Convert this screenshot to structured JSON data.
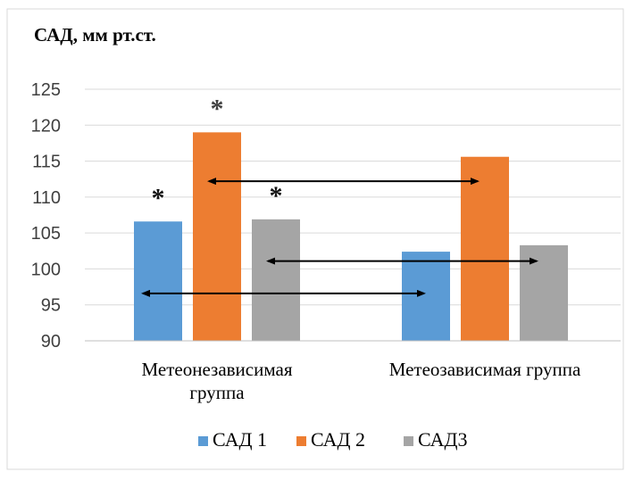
{
  "chart_data": {
    "type": "bar",
    "title": "САД, мм рт.ст.",
    "categories": [
      "Метеонезависимая группа",
      "Метеозависимая группа"
    ],
    "category_lines": [
      [
        "Метеонезависимая",
        "группа"
      ],
      [
        "Метеозависимая группа"
      ]
    ],
    "series": [
      {
        "name": "САД 1",
        "values": [
          106.6,
          102.4
        ],
        "color": "#5B9BD5"
      },
      {
        "name": "САД 2",
        "values": [
          119.0,
          115.6
        ],
        "color": "#ED7D31"
      },
      {
        "name": "САД3",
        "values": [
          106.9,
          103.3
        ],
        "color": "#A5A5A5"
      }
    ],
    "ylim": [
      90,
      125
    ],
    "yticks": [
      90,
      95,
      100,
      105,
      110,
      115,
      120,
      125
    ],
    "grid": true,
    "legend_position": "bottom",
    "annotations": {
      "significance_markers": [
        {
          "series": 0,
          "category": 0,
          "text": "*"
        },
        {
          "series": 1,
          "category": 0,
          "text": "*"
        },
        {
          "series": 2,
          "category": 0,
          "text": "*"
        }
      ],
      "comparison_arrows": [
        {
          "series": 0,
          "y": 96.6
        },
        {
          "series": 1,
          "y": 112.2
        },
        {
          "series": 2,
          "y": 101.1
        }
      ]
    }
  }
}
